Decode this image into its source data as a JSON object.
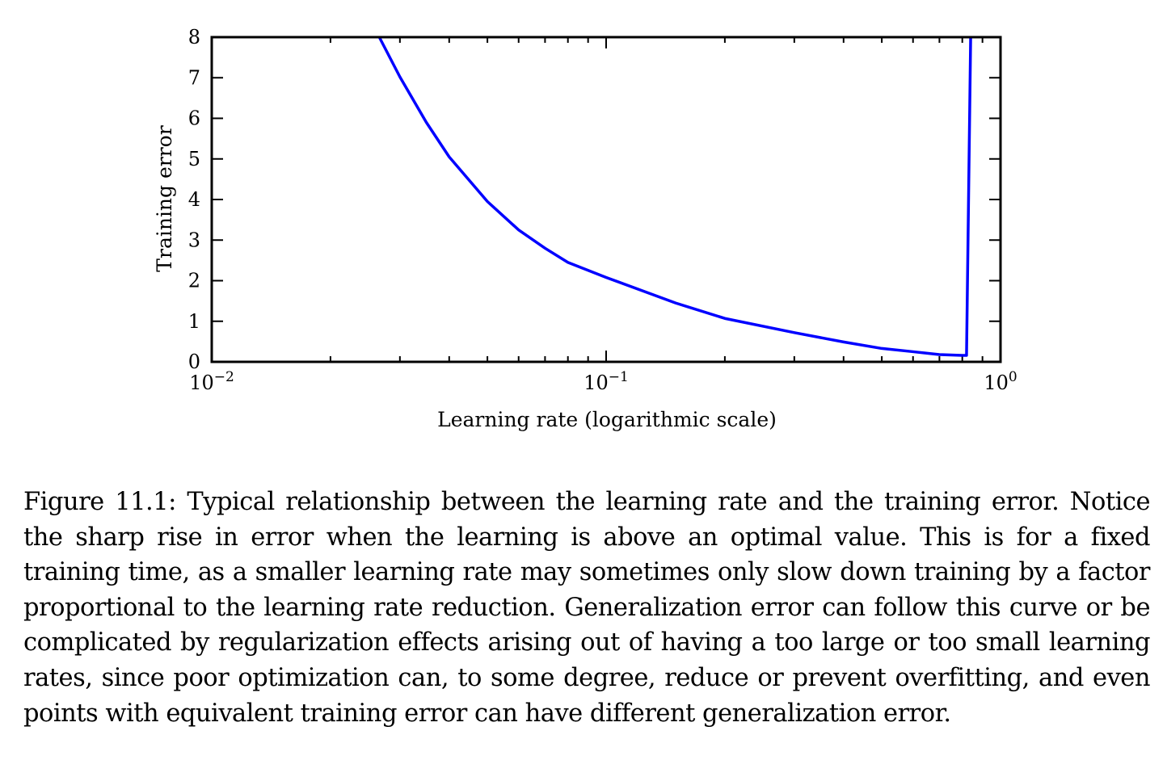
{
  "chart_data": {
    "type": "line",
    "xlabel": "Learning rate (logarithmic scale)",
    "ylabel": "Training error",
    "x_scale": "log",
    "xlim": [
      0.01,
      1
    ],
    "ylim": [
      0,
      8
    ],
    "grid": false,
    "x_ticks": [
      {
        "base": "10",
        "exp": "−2",
        "value": 0.01
      },
      {
        "base": "10",
        "exp": "−1",
        "value": 0.1
      },
      {
        "base": "10",
        "exp": "0",
        "value": 1
      }
    ],
    "y_ticks": [
      "0",
      "1",
      "2",
      "3",
      "4",
      "5",
      "6",
      "7",
      "8"
    ],
    "color": "#0000ff",
    "series": [
      {
        "x": [
          0.0266,
          0.03,
          0.035,
          0.04,
          0.05,
          0.06,
          0.07,
          0.08,
          0.1,
          0.15,
          0.2,
          0.3,
          0.4,
          0.5,
          0.6,
          0.7,
          0.8,
          0.82,
          0.84
        ],
        "y": [
          8.0,
          7.02,
          5.9,
          5.05,
          3.95,
          3.25,
          2.8,
          2.45,
          2.08,
          1.45,
          1.07,
          0.72,
          0.49,
          0.33,
          0.25,
          0.18,
          0.16,
          0.16,
          8.0
        ]
      }
    ]
  },
  "caption": "Figure 11.1: Typical relationship between the learning rate and the training error. Notice the sharp rise in error when the learning is above an optimal value. This is for a fixed training time, as a smaller learning rate may sometimes only slow down training by a factor proportional to the learning rate reduction. Generalization error can follow this curve or be complicated by regularization effects arising out of having a too large or too small learning rates, since poor optimization can, to some degree, reduce or prevent overfitting, and even points with equivalent training error can have different generalization error."
}
